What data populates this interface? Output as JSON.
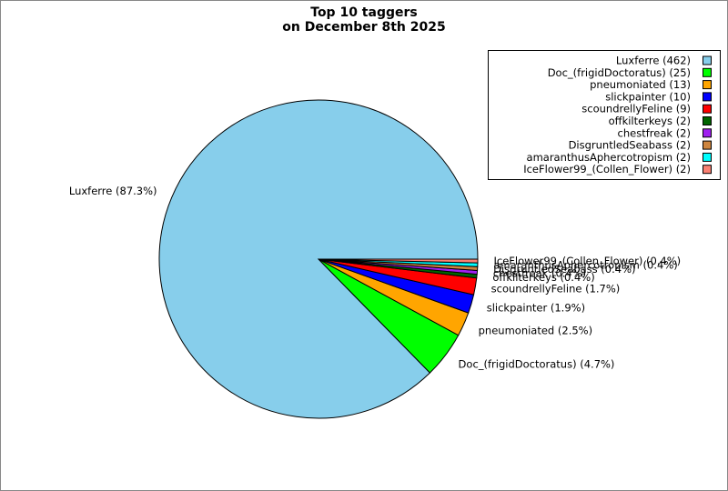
{
  "chart_data": {
    "type": "pie",
    "title": "Top 10 taggers",
    "subtitle": "on December 8th 2025",
    "categories": [
      "Luxferre",
      "Doc_(frigidDoctoratus)",
      "pneumoniated",
      "slickpainter",
      "scoundrellyFeline",
      "offkilterkeys",
      "chestfreak",
      "DisgruntledSeabass",
      "amaranthusAphercotropism",
      "IceFlower99_(Collen_Flower)"
    ],
    "values": [
      462,
      25,
      13,
      10,
      9,
      2,
      2,
      2,
      2,
      2
    ],
    "colors": [
      "#87ceeb",
      "#00ff00",
      "#ffa500",
      "#0000ff",
      "#ff0000",
      "#006400",
      "#a020f0",
      "#cd853f",
      "#00ffff",
      "#fa8072"
    ],
    "slice_labels": [
      "Luxferre (87.3%)",
      "Doc_(frigidDoctoratus) (4.7%)",
      "pneumoniated (2.5%)",
      "slickpainter (1.9%)",
      "scoundrellyFeline (1.7%)",
      "offkilterkeys (0.4%)",
      "chestfreak (0.4%)",
      "DisgruntledSeabass (0.4%)",
      "amaranthusAphercotropism (0.4%)",
      "IceFlower99_(Collen_Flower) (0.4%)"
    ],
    "legend_labels": [
      "Luxferre (462)",
      "Doc_(frigidDoctoratus) (25)",
      "pneumoniated (13)",
      "slickpainter (10)",
      "scoundrellyFeline (9)",
      "offkilterkeys (2)",
      "chestfreak (2)",
      "DisgruntledSeabass (2)",
      "amaranthusAphercotropism (2)",
      "IceFlower99_(Collen_Flower) (2)"
    ],
    "legend": "upper right"
  }
}
